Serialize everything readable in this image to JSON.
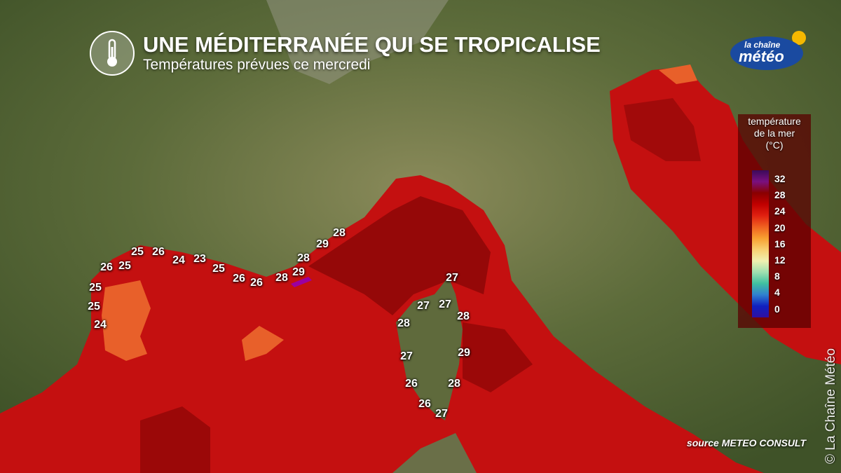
{
  "header": {
    "title": "UNE MÉDITERRANÉE QUI SE TROPICALISE",
    "subtitle": "Températures prévues ce mercredi",
    "icon": "thermometer-icon"
  },
  "logo": {
    "line1": "la chaîne",
    "line2": "météo"
  },
  "legend": {
    "title_lines": [
      "température",
      "de la mer",
      "(°C)"
    ],
    "ticks": [
      "32",
      "28",
      "24",
      "20",
      "16",
      "12",
      "8",
      "4",
      "0"
    ],
    "colors": [
      "#3a0a5a",
      "#7a1080",
      "#8a0000",
      "#c00000",
      "#e02010",
      "#f06020",
      "#f8a030",
      "#f8d070",
      "#f0f0b0",
      "#a0e0b0",
      "#40c0a0",
      "#3080d0",
      "#1020c0",
      "#3010a0"
    ]
  },
  "temperatures": [
    "25",
    "26",
    "26",
    "25",
    "24",
    "23",
    "25",
    "26",
    "26",
    "28",
    "29",
    "28",
    "29",
    "28",
    "25",
    "25",
    "24",
    "27",
    "27",
    "27",
    "28",
    "28",
    "27",
    "29",
    "26",
    "28",
    "26",
    "27"
  ],
  "source": "source METEO CONSULT",
  "credit": "© La Chaîne Météo",
  "colors": {
    "sea": "#c41010",
    "sea_dark": "#8a0606",
    "sea_warm_low": "#e8602a",
    "land": "#55673a"
  }
}
